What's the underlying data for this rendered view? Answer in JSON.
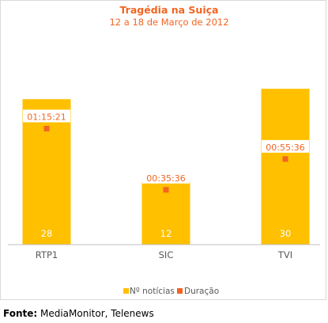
{
  "chart_data": {
    "type": "bar",
    "title": "Tragédia na Suiça",
    "subtitle": "12 a 18 de Março de 2012",
    "categories": [
      "RTP1",
      "SIC",
      "TVI"
    ],
    "series": [
      {
        "name": "Nº notícias",
        "type": "bar",
        "values": [
          28,
          12,
          30
        ],
        "color": "#FFC000"
      },
      {
        "name": "Duração",
        "type": "marker",
        "values": [
          "01:15:21",
          "00:35:36",
          "00:55:36"
        ],
        "seconds": [
          4521,
          2136,
          3336
        ],
        "color": "#F26522"
      }
    ],
    "ylim_bars": [
      0,
      32
    ],
    "ylim_duration_seconds": [
      0,
      6480
    ],
    "legend": "bottom",
    "grid": false,
    "colors": {
      "title": "#F26522",
      "axis_text": "#595959",
      "bar_label": "#ffffff"
    }
  },
  "footer": {
    "source_label": "Fonte:",
    "source_text": " MediaMonitor, Telenews"
  }
}
